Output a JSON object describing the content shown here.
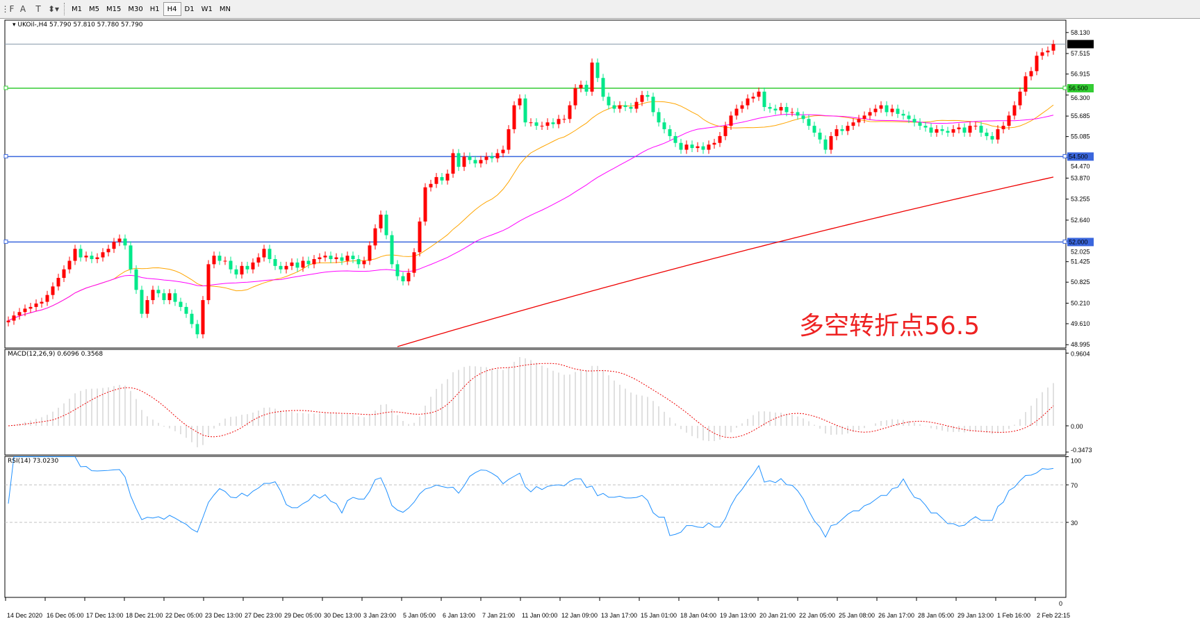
{
  "toolbar": {
    "tools": [
      {
        "name": "period-separator",
        "glyph": "⋮F"
      },
      {
        "name": "text",
        "glyph": "A"
      },
      {
        "name": "text-label",
        "glyph": "T"
      },
      {
        "name": "arrows",
        "glyph": "⬍▾"
      }
    ],
    "timeframes": [
      "M1",
      "M5",
      "M15",
      "M30",
      "H1",
      "H4",
      "D1",
      "W1",
      "MN"
    ],
    "active_timeframe": "H4"
  },
  "header": {
    "symbol": "UKOil-,H4",
    "values": "57.790 57.810 57.780 57.790"
  },
  "annotation": "多空转折点56.5",
  "colors": {
    "bull": "#ff0000",
    "bear": "#00e88a",
    "ma_fast": "#ffa500",
    "ma_mid": "#ff00ff",
    "ma_slow": "#ee0000",
    "level_green": "#33cc33",
    "level_blue": "#3a66dd",
    "macd_hist": "#c0c0c0",
    "macd_signal": "#ee0000",
    "rsi": "#1e90ff"
  },
  "chart_data": [
    {
      "type": "candlestick",
      "title": "",
      "price_ticks": [
        "58.130",
        "57.515",
        "56.915",
        "56.300",
        "55.685",
        "55.085",
        "54.470",
        "53.870",
        "53.255",
        "52.640",
        "52.025",
        "51.425",
        "50.825",
        "50.210",
        "49.610",
        "48.995"
      ],
      "ylim": [
        48.93,
        58.47
      ],
      "time_labels": [
        "14 Dec 2020",
        "16 Dec 05:00",
        "17 Dec 13:00",
        "18 Dec 21:00",
        "22 Dec 05:00",
        "23 Dec 13:00",
        "27 Dec 23:00",
        "29 Dec 05:00",
        "30 Dec 13:00",
        "3 Jan 23:00",
        "5 Jan 05:00",
        "6 Jan 13:00",
        "7 Jan 21:00",
        "11 Jan 00:00",
        "12 Jan 09:00",
        "13 Jan 17:00",
        "15 Jan 01:00",
        "18 Jan 04:00",
        "19 Jan 13:00",
        "20 Jan 21:00",
        "22 Jan 05:00",
        "25 Jan 08:00",
        "26 Jan 17:00",
        "28 Jan 05:00",
        "29 Jan 13:00",
        "1 Feb 16:00",
        "2 Feb 22:15"
      ],
      "close": [
        49.7,
        49.85,
        49.95,
        50.05,
        50.1,
        50.2,
        50.25,
        50.45,
        50.7,
        50.95,
        51.2,
        51.45,
        51.8,
        51.55,
        51.6,
        51.5,
        51.55,
        51.7,
        51.8,
        52.0,
        52.1,
        51.9,
        51.2,
        50.6,
        49.9,
        50.3,
        50.6,
        50.5,
        50.3,
        50.5,
        50.25,
        50.1,
        49.9,
        49.6,
        49.3,
        50.3,
        51.35,
        51.6,
        51.45,
        51.45,
        51.2,
        51.05,
        51.3,
        51.2,
        51.4,
        51.55,
        51.8,
        51.5,
        51.3,
        51.2,
        51.3,
        51.4,
        51.25,
        51.45,
        51.35,
        51.5,
        51.55,
        51.6,
        51.5,
        51.55,
        51.45,
        51.6,
        51.5,
        51.35,
        51.45,
        51.9,
        52.4,
        52.8,
        52.2,
        51.35,
        51.0,
        50.85,
        51.1,
        51.7,
        52.6,
        53.6,
        53.7,
        53.9,
        53.8,
        54.0,
        54.6,
        54.2,
        54.5,
        54.4,
        54.3,
        54.4,
        54.5,
        54.45,
        54.6,
        54.7,
        55.3,
        56.0,
        56.2,
        55.5,
        55.5,
        55.4,
        55.4,
        55.5,
        55.45,
        55.6,
        55.6,
        56.0,
        56.5,
        56.6,
        56.4,
        57.25,
        56.8,
        56.25,
        56.0,
        55.9,
        56.0,
        55.95,
        55.9,
        56.1,
        56.3,
        56.25,
        55.8,
        55.5,
        55.3,
        55.1,
        54.9,
        54.7,
        54.85,
        54.75,
        54.8,
        54.7,
        54.85,
        54.9,
        55.1,
        55.4,
        55.7,
        55.9,
        56.0,
        56.2,
        56.25,
        56.4,
        55.95,
        55.9,
        55.85,
        55.95,
        55.8,
        55.8,
        55.7,
        55.6,
        55.4,
        55.2,
        55.0,
        54.7,
        55.1,
        55.3,
        55.25,
        55.4,
        55.5,
        55.6,
        55.7,
        55.8,
        55.9,
        56.0,
        55.8,
        55.9,
        55.75,
        55.7,
        55.6,
        55.5,
        55.4,
        55.35,
        55.2,
        55.3,
        55.25,
        55.2,
        55.3,
        55.35,
        55.2,
        55.4,
        55.4,
        55.2,
        55.1,
        55.0,
        55.3,
        55.4,
        55.7,
        56.0,
        56.4,
        56.85,
        57.0,
        57.45,
        57.55,
        57.6,
        57.79
      ],
      "current_price": "57.790",
      "levels": [
        {
          "price": 56.5,
          "label": "56.500",
          "color": "green"
        },
        {
          "price": 54.5,
          "label": "54.500",
          "color": "blue"
        },
        {
          "price": 52.0,
          "label": "52.000",
          "color": "blue"
        }
      ],
      "moving_averages": [
        {
          "color": "orange",
          "period": 20
        },
        {
          "color": "magenta",
          "period": 50
        },
        {
          "color": "red",
          "from": {
            "bar": 70,
            "price": 48.94
          },
          "to": {
            "bar": 188,
            "price": 53.9
          }
        }
      ]
    },
    {
      "type": "bar+line",
      "label": "MACD(12,26,9) 0.6096 0.3568",
      "ticks": [
        "0.9604",
        "0.00",
        "-0.3473"
      ],
      "ylim": [
        -0.3473,
        0.9604
      ]
    },
    {
      "type": "line",
      "label": "RSI(14) 73.0230",
      "ticks": [
        "100",
        "70",
        "30",
        "0"
      ],
      "levels": [
        70,
        30
      ],
      "ylim": [
        0,
        100
      ]
    }
  ]
}
